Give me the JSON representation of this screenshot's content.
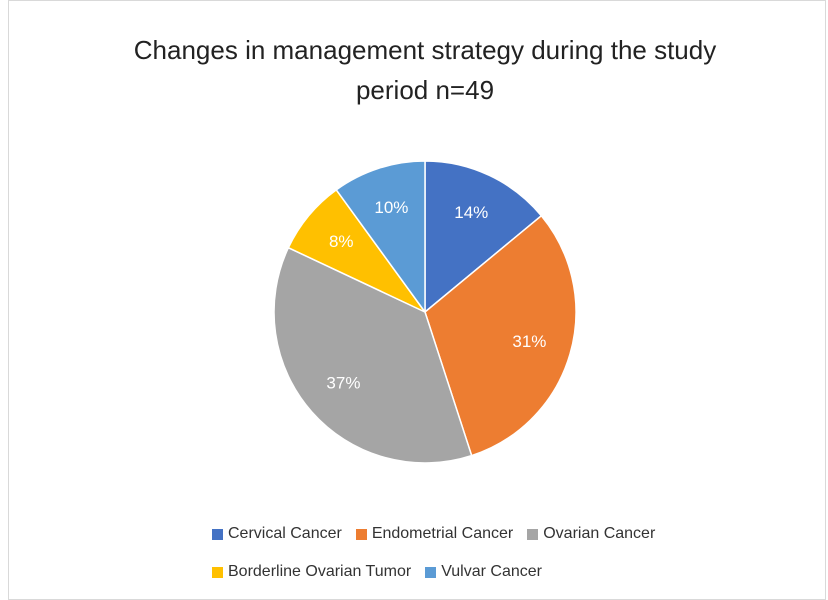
{
  "chart_data": {
    "type": "pie",
    "title": "Changes in management strategy during the study period n=49",
    "categories": [
      "Cervical Cancer",
      "Endometrial Cancer",
      "Ovarian Cancer",
      "Borderline Ovarian Tumor",
      "Vulvar Cancer"
    ],
    "values": [
      14,
      31,
      37,
      8,
      10
    ],
    "value_labels": [
      "14%",
      "31%",
      "37%",
      "8%",
      "10%"
    ],
    "colors": [
      "#4472c4",
      "#ed7d31",
      "#a5a5a5",
      "#ffc000",
      "#5b9bd5"
    ],
    "legend": "bottom"
  }
}
